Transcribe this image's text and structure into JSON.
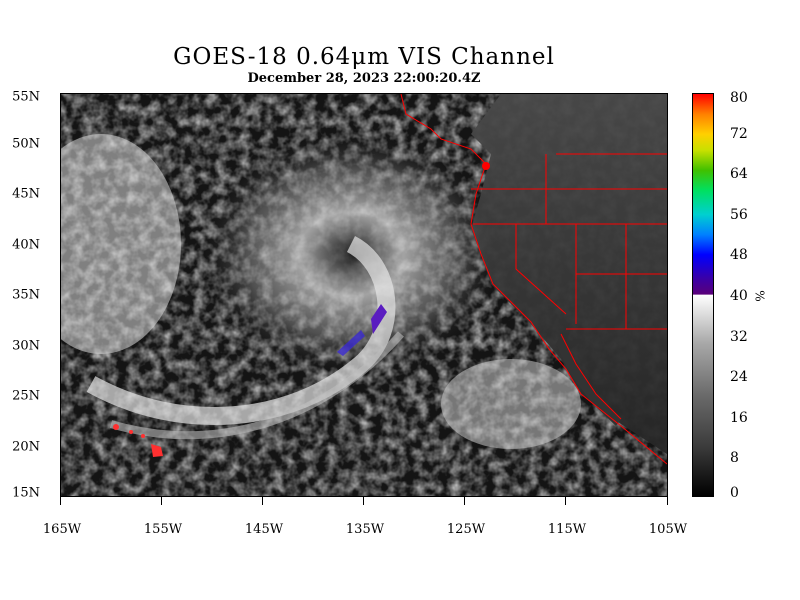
{
  "header": {
    "title": "GOES-18  0.64μm VIS Channel",
    "subtitle": "December 28, 2023 22:00:20.4Z"
  },
  "axes": {
    "latitude_labels": [
      "55N",
      "50N",
      "45N",
      "40N",
      "35N",
      "30N",
      "25N",
      "20N",
      "15N"
    ],
    "longitude_labels": [
      "165W",
      "155W",
      "145W",
      "135W",
      "125W",
      "115W",
      "105W"
    ]
  },
  "colorbar": {
    "tick_labels": [
      "80",
      "72",
      "64",
      "56",
      "48",
      "40",
      "32",
      "24",
      "16",
      "8",
      "0"
    ],
    "unit": "%",
    "colors": {
      "low": "#000000",
      "mid_gray": "#ffffff",
      "purple": "#5a007a",
      "blue": "#0000ff",
      "cyan": "#00d0d0",
      "green": "#40c000",
      "yellow": "#ffd000",
      "orange": "#ff8000",
      "high": "#ff0000"
    }
  },
  "map": {
    "boundary_color": "#ff0000",
    "features": [
      "coastline",
      "state-borders",
      "storm-system",
      "cloud-band",
      "hawaii"
    ]
  }
}
